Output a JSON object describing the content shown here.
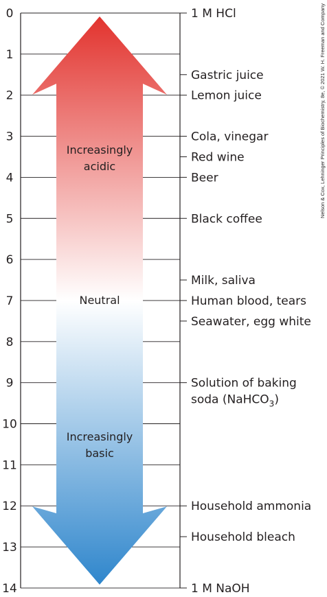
{
  "scale": {
    "ticks": [
      "0",
      "1",
      "2",
      "3",
      "4",
      "5",
      "6",
      "7",
      "8",
      "9",
      "10",
      "11",
      "12",
      "13",
      "14"
    ]
  },
  "arrow": {
    "acid_label_line1": "Increasingly",
    "acid_label_line2": "acidic",
    "neutral_label": "Neutral",
    "base_label_line1": "Increasingly",
    "base_label_line2": "basic",
    "colors": {
      "acid": "#e2332e",
      "neutral": "#ffffff",
      "base": "#2f86cc"
    }
  },
  "substances": [
    {
      "ph": 0,
      "label": "1 M  HCl"
    },
    {
      "ph": 1.5,
      "label": "Gastric juice"
    },
    {
      "ph": 2,
      "label": "Lemon juice"
    },
    {
      "ph": 3,
      "label": "Cola, vinegar"
    },
    {
      "ph": 3.5,
      "label": "Red wine"
    },
    {
      "ph": 4,
      "label": "Beer"
    },
    {
      "ph": 5,
      "label": "Black coffee"
    },
    {
      "ph": 6.5,
      "label": "Milk, saliva"
    },
    {
      "ph": 7,
      "label": "Human blood, tears"
    },
    {
      "ph": 7.5,
      "label": "Seawater, egg white"
    },
    {
      "ph": 9,
      "label": "Solution of baking",
      "label2": "soda (NaHCO",
      "label2_sub": "3",
      "label2_end": ")"
    },
    {
      "ph": 12,
      "label": "Household ammonia"
    },
    {
      "ph": 12.75,
      "label": "Household bleach"
    },
    {
      "ph": 14,
      "label": "1 M  NaOH"
    }
  ],
  "credit": "Nelson & Cox, Lehninger Principles of Biochemistry, 8e, © 2021 W. H. Freeman and Company"
}
